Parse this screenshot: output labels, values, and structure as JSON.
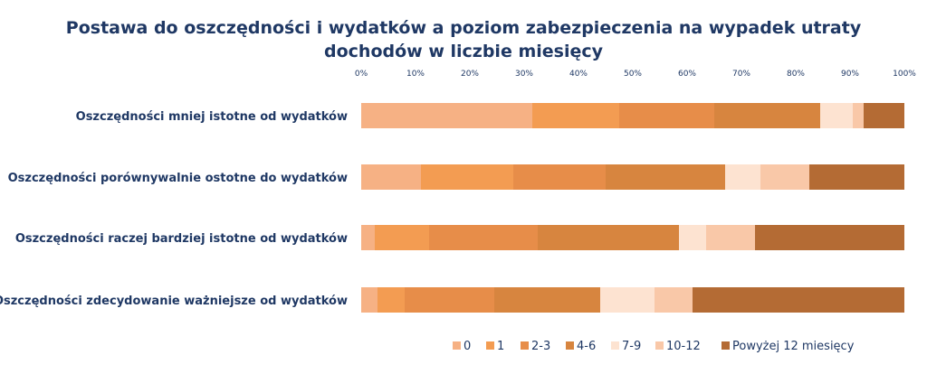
{
  "chart_data": {
    "type": "bar",
    "orientation": "horizontal",
    "stacked": "percent",
    "title_lines": [
      "Postawa do oszczędności i wydatków a poziom zabezpieczenia na wypadek utraty",
      "dochodów w liczbie miesięcy"
    ],
    "xlim": [
      0,
      100
    ],
    "xticks": [
      "0%",
      "10%",
      "20%",
      "30%",
      "40%",
      "50%",
      "60%",
      "70%",
      "80%",
      "90%",
      "100%"
    ],
    "xaxis_position": "top",
    "grid": false,
    "legend_position": "bottom",
    "categories": [
      "Oszczędności mniej istotne od wydatków",
      "Oszczędności porównywalnie ostotne do wydatków",
      "Oszczędności raczej bardziej istotne od wydatków",
      "Oszczędności zdecydowanie ważniejsze od wydatków"
    ],
    "series": [
      {
        "name": "0",
        "color": "#f6b184",
        "values": [
          31.5,
          11.0,
          2.5,
          3.0
        ]
      },
      {
        "name": "1",
        "color": "#f39c52",
        "values": [
          16.0,
          17.0,
          10.0,
          5.0
        ]
      },
      {
        "name": "2-3",
        "color": "#e78d49",
        "values": [
          17.5,
          17.0,
          20.0,
          16.5
        ]
      },
      {
        "name": "4-6",
        "color": "#d7853f",
        "values": [
          19.5,
          22.0,
          26.0,
          19.5
        ]
      },
      {
        "name": "7-9",
        "color": "#fde3d1",
        "values": [
          6.0,
          6.5,
          5.0,
          10.0
        ]
      },
      {
        "name": "10-12",
        "color": "#f9c8a8",
        "values": [
          2.0,
          9.0,
          9.0,
          7.0
        ]
      },
      {
        "name": "Powyżej 12 miesięcy",
        "color": "#b46b34",
        "values": [
          7.5,
          17.5,
          27.5,
          39.0
        ]
      }
    ]
  }
}
